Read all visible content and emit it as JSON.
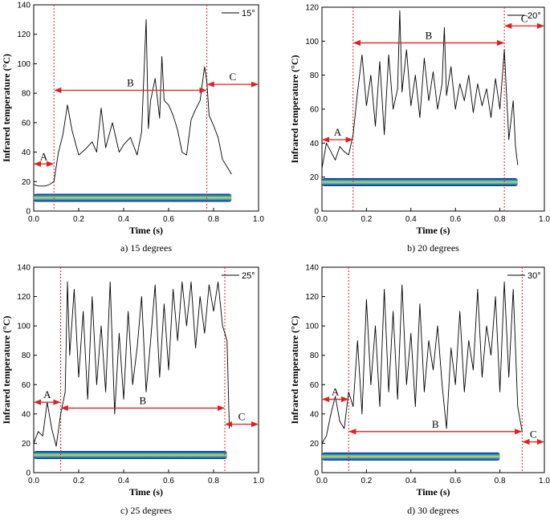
{
  "chart_data": [
    {
      "type": "line",
      "legend": "15°",
      "caption": "a) 15 degrees",
      "xlabel": "Time (s)",
      "ylabel": "Infrared temperature (°C)",
      "xlim": [
        0,
        1.0
      ],
      "ylim": [
        0,
        140
      ],
      "xticks": [
        "0.0",
        "0.2",
        "0.4",
        "0.6",
        "0.8",
        "1.0"
      ],
      "yticks": [
        "0",
        "20",
        "40",
        "60",
        "80",
        "100",
        "120",
        "140"
      ],
      "series": [
        {
          "name": "15°",
          "x": [
            0,
            0.02,
            0.05,
            0.07,
            0.09,
            0.11,
            0.13,
            0.15,
            0.17,
            0.2,
            0.23,
            0.26,
            0.28,
            0.3,
            0.32,
            0.35,
            0.38,
            0.4,
            0.43,
            0.46,
            0.48,
            0.5,
            0.51,
            0.52,
            0.54,
            0.56,
            0.57,
            0.58,
            0.6,
            0.62,
            0.64,
            0.66,
            0.68,
            0.7,
            0.72,
            0.74,
            0.76,
            0.77,
            0.78,
            0.8,
            0.82,
            0.84,
            0.86,
            0.88
          ],
          "y": [
            18,
            17,
            17,
            18,
            20,
            40,
            52,
            72,
            55,
            38,
            42,
            47,
            40,
            70,
            43,
            60,
            40,
            45,
            50,
            38,
            54,
            130,
            56,
            75,
            90,
            63,
            105,
            75,
            72,
            65,
            55,
            40,
            38,
            62,
            69,
            75,
            98,
            88,
            65,
            58,
            50,
            35,
            30,
            25
          ]
        }
      ],
      "phases": [
        {
          "label": "A",
          "from": 0.0,
          "to": 0.09,
          "y": 32
        },
        {
          "label": "B",
          "from": 0.09,
          "to": 0.77,
          "y": 82
        },
        {
          "label": "C",
          "from": 0.77,
          "to": 1.0,
          "y": 86
        }
      ],
      "vlines": [
        0.09,
        0.77
      ],
      "thermal_strip": {
        "from": 0.0,
        "to": 0.88,
        "y": 9
      }
    },
    {
      "type": "line",
      "legend": "20°",
      "caption": "b) 20 degrees",
      "xlabel": "Time (s)",
      "ylabel": "Infrared temperature (°C)",
      "xlim": [
        0,
        1.0
      ],
      "ylim": [
        0,
        120
      ],
      "xticks": [
        "0.0",
        "0.2",
        "0.4",
        "0.6",
        "0.8",
        "1.0"
      ],
      "yticks": [
        "0",
        "20",
        "40",
        "60",
        "80",
        "100",
        "120"
      ],
      "series": [
        {
          "name": "20°",
          "x": [
            0,
            0.02,
            0.04,
            0.06,
            0.08,
            0.1,
            0.12,
            0.14,
            0.16,
            0.18,
            0.2,
            0.22,
            0.24,
            0.26,
            0.28,
            0.3,
            0.32,
            0.34,
            0.35,
            0.36,
            0.38,
            0.4,
            0.42,
            0.44,
            0.46,
            0.48,
            0.5,
            0.52,
            0.54,
            0.55,
            0.56,
            0.58,
            0.6,
            0.62,
            0.64,
            0.66,
            0.68,
            0.7,
            0.72,
            0.74,
            0.76,
            0.78,
            0.8,
            0.82,
            0.84,
            0.86,
            0.87,
            0.88
          ],
          "y": [
            25,
            40,
            35,
            30,
            38,
            35,
            33,
            45,
            70,
            92,
            62,
            80,
            50,
            88,
            45,
            92,
            60,
            72,
            118,
            70,
            95,
            62,
            80,
            55,
            90,
            65,
            82,
            60,
            75,
            108,
            68,
            85,
            60,
            75,
            65,
            80,
            58,
            75,
            62,
            72,
            55,
            78,
            60,
            95,
            42,
            65,
            38,
            27
          ]
        }
      ],
      "phases": [
        {
          "label": "A",
          "from": 0.0,
          "to": 0.14,
          "y": 42
        },
        {
          "label": "B",
          "from": 0.14,
          "to": 0.82,
          "y": 99
        },
        {
          "label": "C",
          "from": 0.82,
          "to": 1.0,
          "y": 109
        }
      ],
      "vlines": [
        0.14,
        0.82
      ],
      "thermal_strip": {
        "from": 0.0,
        "to": 0.88,
        "y": 17
      }
    },
    {
      "type": "line",
      "legend": "25°",
      "caption": "c) 25 degrees",
      "xlabel": "Time (s)",
      "ylabel": "Infrared temperature (°C)",
      "xlim": [
        0,
        1.0
      ],
      "ylim": [
        0,
        140
      ],
      "xticks": [
        "0.0",
        "0.2",
        "0.4",
        "0.6",
        "0.8",
        "1.0"
      ],
      "yticks": [
        "0",
        "20",
        "40",
        "60",
        "80",
        "100",
        "120",
        "140"
      ],
      "series": [
        {
          "name": "25°",
          "x": [
            0,
            0.02,
            0.04,
            0.06,
            0.08,
            0.1,
            0.12,
            0.14,
            0.15,
            0.16,
            0.18,
            0.2,
            0.22,
            0.24,
            0.26,
            0.28,
            0.3,
            0.32,
            0.34,
            0.36,
            0.38,
            0.4,
            0.42,
            0.44,
            0.46,
            0.48,
            0.5,
            0.52,
            0.54,
            0.56,
            0.58,
            0.6,
            0.62,
            0.64,
            0.66,
            0.68,
            0.7,
            0.72,
            0.74,
            0.76,
            0.78,
            0.8,
            0.82,
            0.84,
            0.86,
            0.87
          ],
          "y": [
            20,
            28,
            25,
            48,
            30,
            18,
            40,
            55,
            130,
            80,
            125,
            65,
            110,
            50,
            120,
            60,
            100,
            55,
            130,
            40,
            95,
            50,
            110,
            60,
            85,
            120,
            55,
            90,
            128,
            65,
            115,
            70,
            125,
            90,
            130,
            100,
            130,
            85,
            120,
            95,
            128,
            110,
            130,
            100,
            90,
            30
          ]
        }
      ],
      "phases": [
        {
          "label": "A",
          "from": 0.0,
          "to": 0.12,
          "y": 48
        },
        {
          "label": "B",
          "from": 0.12,
          "to": 0.85,
          "y": 44
        },
        {
          "label": "C",
          "from": 0.85,
          "to": 1.0,
          "y": 33
        }
      ],
      "vlines": [
        0.12,
        0.85
      ],
      "thermal_strip": {
        "from": 0.0,
        "to": 0.86,
        "y": 12
      }
    },
    {
      "type": "line",
      "legend": "30°",
      "caption": "d) 30 degrees",
      "xlabel": "Time (s)",
      "ylabel": "Infrared temperature (°C)",
      "xlim": [
        0,
        1.0
      ],
      "ylim": [
        0,
        140
      ],
      "xticks": [
        "0.0",
        "0.2",
        "0.4",
        "0.6",
        "0.8",
        "1.0"
      ],
      "yticks": [
        "0",
        "20",
        "40",
        "60",
        "80",
        "100",
        "120",
        "140"
      ],
      "series": [
        {
          "name": "30°",
          "x": [
            0,
            0.02,
            0.04,
            0.06,
            0.08,
            0.1,
            0.12,
            0.14,
            0.16,
            0.18,
            0.2,
            0.22,
            0.24,
            0.26,
            0.28,
            0.3,
            0.32,
            0.34,
            0.36,
            0.38,
            0.4,
            0.42,
            0.44,
            0.46,
            0.48,
            0.5,
            0.52,
            0.54,
            0.56,
            0.58,
            0.6,
            0.62,
            0.64,
            0.66,
            0.68,
            0.7,
            0.72,
            0.74,
            0.76,
            0.78,
            0.8,
            0.82,
            0.84,
            0.86,
            0.88,
            0.9
          ],
          "y": [
            20,
            25,
            40,
            52,
            35,
            30,
            55,
            45,
            90,
            40,
            118,
            60,
            100,
            45,
            125,
            55,
            110,
            50,
            128,
            60,
            95,
            45,
            115,
            55,
            90,
            70,
            100,
            60,
            30,
            85,
            60,
            110,
            55,
            90,
            70,
            125,
            65,
            100,
            80,
            120,
            55,
            130,
            65,
            125,
            45,
            28
          ]
        }
      ],
      "phases": [
        {
          "label": "A",
          "from": 0.0,
          "to": 0.12,
          "y": 50
        },
        {
          "label": "B",
          "from": 0.12,
          "to": 0.9,
          "y": 28
        },
        {
          "label": "C",
          "from": 0.9,
          "to": 1.0,
          "y": 21
        }
      ],
      "vlines": [
        0.12,
        0.9
      ],
      "thermal_strip": {
        "from": 0.0,
        "to": 0.8,
        "y": 11
      }
    }
  ],
  "colors": {
    "line": "#000000",
    "marker": "#e02020",
    "strip_outer": "#0a1a8c",
    "strip_mid": "#2aa8d8",
    "strip_hot": "#e8d020"
  }
}
